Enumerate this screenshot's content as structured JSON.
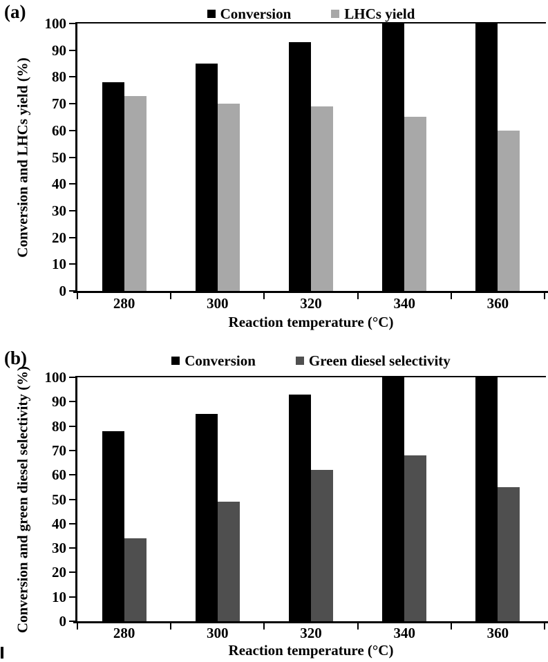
{
  "chart_data": [
    {
      "type": "bar",
      "panel_label": "(a)",
      "categories": [
        "280",
        "300",
        "320",
        "340",
        "360"
      ],
      "series": [
        {
          "name": "Conversion",
          "color": "#000000",
          "values": [
            78,
            85,
            93,
            100,
            100
          ]
        },
        {
          "name": "LHCs yield",
          "color": "#a8a8a8",
          "values": [
            73,
            70,
            69,
            65,
            60
          ]
        }
      ],
      "xlabel": "Reaction temperature (°C)",
      "ylabel": "Conversion and LHCs yield (%)",
      "ylim": [
        0,
        100
      ],
      "ytick_step": 10,
      "grid": false,
      "legend_position": "top"
    },
    {
      "type": "bar",
      "panel_label": "(b)",
      "categories": [
        "280",
        "300",
        "320",
        "340",
        "360"
      ],
      "series": [
        {
          "name": "Conversion",
          "color": "#000000",
          "values": [
            78,
            85,
            93,
            100,
            100
          ]
        },
        {
          "name": "Green diesel selectivity",
          "color": "#4f4f4f",
          "values": [
            34,
            49,
            62,
            68,
            55
          ]
        }
      ],
      "xlabel": "Reaction temperature (°C)",
      "ylabel": "Conversion and green diesel selectivity (%)",
      "ylim": [
        0,
        100
      ],
      "ytick_step": 10,
      "grid": false,
      "legend_position": "top"
    }
  ]
}
